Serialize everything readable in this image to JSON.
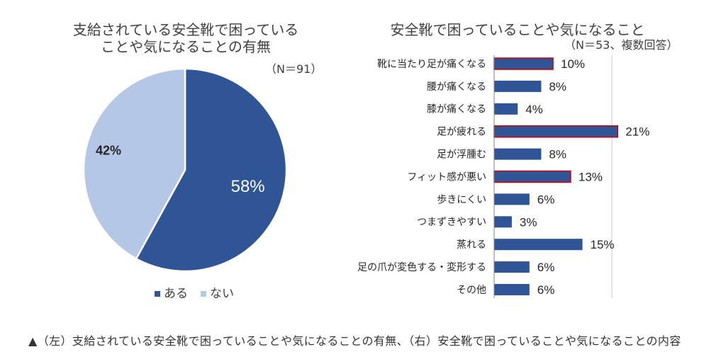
{
  "chart_data": [
    {
      "type": "pie",
      "title": "支給されている安全靴で困っている\nことや気になることの有無",
      "note": "（N＝91）",
      "value_suffix": "%",
      "legend_position": "bottom",
      "slices": [
        {
          "label": "ある",
          "value": 58,
          "color": "#2F5597"
        },
        {
          "label": "ない",
          "value": 42,
          "color": "#B4C7E7"
        }
      ]
    },
    {
      "type": "bar",
      "orientation": "horizontal",
      "title": "安全靴で困っていることや気になること",
      "note": "（N＝53、複数回答）",
      "value_suffix": "%",
      "categories": [
        "靴に当たり足が痛くなる",
        "腰が痛くなる",
        "膝が痛くなる",
        "足が疲れる",
        "足が浮腫む",
        "フィット感が悪い",
        "歩きにくい",
        "つまずきやすい",
        "蒸れる",
        "足の爪が変色する・変形する",
        "その他"
      ],
      "values": [
        10,
        8,
        4,
        21,
        8,
        13,
        6,
        3,
        15,
        6,
        6
      ],
      "highlighted": [
        true,
        false,
        false,
        true,
        false,
        true,
        false,
        false,
        false,
        false,
        false
      ],
      "xlim": [
        0,
        25
      ],
      "x_gridlines": [
        20
      ],
      "bar_color": "#2F5597",
      "highlight_outline_color": "#D20000"
    }
  ],
  "caption": "▲（左）支給されている安全靴で困っていることや気になることの有無、（右）安全靴で困っていることや気になることの内容"
}
